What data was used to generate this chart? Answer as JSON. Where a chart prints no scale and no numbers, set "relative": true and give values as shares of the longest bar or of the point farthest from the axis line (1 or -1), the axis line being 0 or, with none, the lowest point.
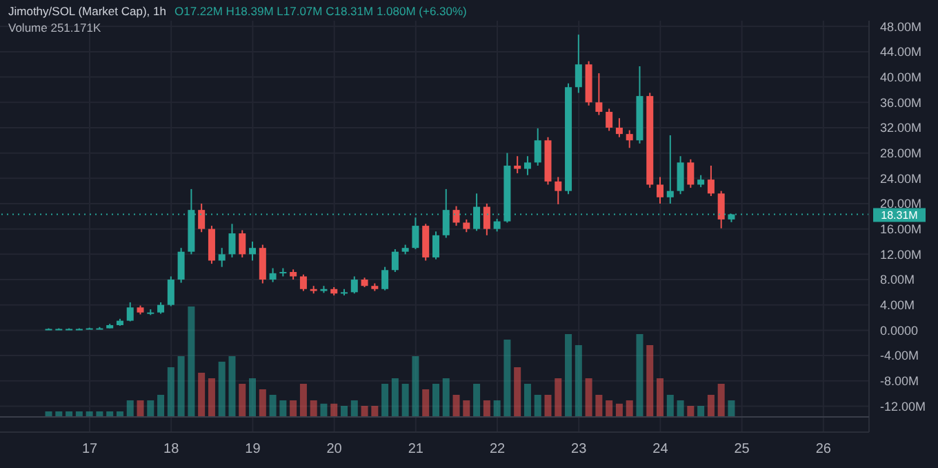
{
  "chart_data": [
    {
      "type": "candlestick",
      "title": "Jimothy/SOL (Market Cap), 1h",
      "annotations": [
        "O17.22M H18.39M L17.07M C18.31M 1.080M (+6.30%)"
      ],
      "x": [
        16.5,
        16.625,
        16.75,
        16.875,
        17,
        17.125,
        17.25,
        17.375,
        17.5,
        17.625,
        17.75,
        17.875,
        18,
        18.125,
        18.25,
        18.375,
        18.5,
        18.625,
        18.75,
        18.875,
        19,
        19.125,
        19.25,
        19.375,
        19.5,
        19.625,
        19.75,
        19.875,
        20,
        20.125,
        20.25,
        20.375,
        20.5,
        20.625,
        20.75,
        20.875,
        21,
        21.125,
        21.25,
        21.375,
        21.5,
        21.625,
        21.75,
        21.875,
        22,
        22.125,
        22.25,
        22.375,
        22.5,
        22.625,
        22.75,
        22.875,
        23,
        23.125,
        23.25,
        23.375,
        23.5,
        23.625,
        23.75,
        23.875,
        24,
        24.125,
        24.25,
        24.375,
        24.5,
        24.625,
        24.75,
        24.875
      ],
      "ohlc": [
        [
          0.2,
          0.3,
          0.1,
          0.2
        ],
        [
          0.2,
          0.3,
          0.1,
          0.2
        ],
        [
          0.2,
          0.3,
          0.1,
          0.2
        ],
        [
          0.2,
          0.3,
          0.1,
          0.2
        ],
        [
          0.2,
          0.4,
          0.2,
          0.3
        ],
        [
          0.3,
          0.5,
          0.2,
          0.3
        ],
        [
          0.3,
          1.0,
          0.3,
          0.8
        ],
        [
          0.8,
          1.8,
          0.7,
          1.5
        ],
        [
          1.5,
          4.4,
          1.4,
          3.6
        ],
        [
          3.6,
          3.9,
          2.5,
          2.8
        ],
        [
          2.8,
          3.3,
          2.4,
          2.8
        ],
        [
          2.8,
          4.4,
          2.6,
          4.0
        ],
        [
          4.0,
          8.5,
          3.8,
          8.0
        ],
        [
          8.0,
          13.0,
          7.5,
          12.4
        ],
        [
          12.4,
          22.3,
          12.0,
          19.0
        ],
        [
          19.0,
          20.0,
          15.5,
          16.0
        ],
        [
          16.0,
          16.5,
          10.5,
          11.0
        ],
        [
          11.0,
          13.0,
          10.0,
          12.0
        ],
        [
          12.0,
          16.8,
          11.5,
          15.3
        ],
        [
          15.3,
          15.8,
          11.5,
          12.0
        ],
        [
          12.0,
          14.0,
          11.0,
          13.0
        ],
        [
          13.0,
          13.5,
          7.4,
          8.0
        ],
        [
          8.0,
          9.8,
          7.6,
          9.0
        ],
        [
          9.0,
          9.8,
          8.5,
          9.2
        ],
        [
          9.2,
          9.6,
          8.0,
          8.5
        ],
        [
          8.5,
          8.8,
          6.2,
          6.5
        ],
        [
          6.5,
          7.0,
          5.8,
          6.2
        ],
        [
          6.2,
          7.0,
          5.9,
          6.5
        ],
        [
          6.5,
          6.8,
          5.5,
          5.8
        ],
        [
          5.8,
          6.5,
          5.5,
          6.0
        ],
        [
          6.0,
          8.5,
          5.8,
          8.0
        ],
        [
          8.0,
          8.3,
          6.8,
          7.0
        ],
        [
          7.0,
          7.4,
          6.2,
          6.5
        ],
        [
          6.5,
          10.0,
          6.3,
          9.5
        ],
        [
          9.5,
          12.8,
          9.2,
          12.4
        ],
        [
          12.4,
          13.5,
          12.0,
          13.0
        ],
        [
          13.0,
          17.8,
          12.8,
          16.5
        ],
        [
          16.5,
          16.8,
          11.0,
          11.5
        ],
        [
          11.5,
          15.6,
          11.2,
          15.0
        ],
        [
          15.0,
          22.3,
          14.6,
          19.0
        ],
        [
          19.0,
          19.6,
          16.5,
          17.0
        ],
        [
          17.0,
          17.5,
          15.5,
          16.0
        ],
        [
          16.0,
          21.6,
          15.7,
          19.5
        ],
        [
          19.5,
          20.0,
          15.0,
          16.0
        ],
        [
          16.0,
          17.6,
          15.6,
          17.2
        ],
        [
          17.2,
          28.0,
          17.0,
          26.0
        ],
        [
          26.0,
          27.5,
          24.8,
          25.5
        ],
        [
          25.5,
          27.5,
          24.5,
          26.5
        ],
        [
          26.5,
          31.9,
          26.0,
          30.0
        ],
        [
          30.0,
          30.5,
          23.0,
          23.5
        ],
        [
          23.5,
          24.2,
          19.9,
          22.0
        ],
        [
          22.0,
          39.0,
          21.5,
          38.4
        ],
        [
          38.4,
          46.7,
          37.5,
          42.0
        ],
        [
          42.0,
          42.5,
          35.5,
          36.0
        ],
        [
          36.0,
          40.6,
          34.0,
          34.5
        ],
        [
          34.5,
          35.0,
          31.5,
          32.0
        ],
        [
          32.0,
          33.5,
          30.5,
          31.0
        ],
        [
          31.0,
          31.6,
          28.8,
          30.0
        ],
        [
          30.0,
          41.7,
          29.5,
          37.0
        ],
        [
          37.0,
          37.5,
          22.5,
          23.0
        ],
        [
          23.0,
          24.2,
          20.0,
          21.0
        ],
        [
          21.0,
          30.8,
          20.0,
          22.0
        ],
        [
          22.0,
          27.5,
          21.5,
          26.5
        ],
        [
          26.5,
          27.0,
          22.5,
          23.0
        ],
        [
          23.0,
          24.5,
          22.6,
          23.8
        ],
        [
          23.8,
          26.0,
          21.2,
          21.6
        ],
        [
          21.6,
          22.0,
          16.1,
          17.5
        ],
        [
          17.5,
          18.39,
          17.07,
          18.31
        ]
      ],
      "colors": [
        "#26a69a",
        "#26a69a",
        "#26a69a",
        "#26a69a",
        "#26a69a",
        "#26a69a",
        "#26a69a",
        "#26a69a",
        "#26a69a",
        "#ef5350",
        "#26a69a",
        "#26a69a",
        "#26a69a",
        "#26a69a",
        "#26a69a",
        "#ef5350",
        "#ef5350",
        "#26a69a",
        "#26a69a",
        "#ef5350",
        "#26a69a",
        "#ef5350",
        "#26a69a",
        "#26a69a",
        "#ef5350",
        "#ef5350",
        "#ef5350",
        "#26a69a",
        "#ef5350",
        "#26a69a",
        "#26a69a",
        "#ef5350",
        "#ef5350",
        "#26a69a",
        "#26a69a",
        "#26a69a",
        "#26a69a",
        "#ef5350",
        "#26a69a",
        "#26a69a",
        "#ef5350",
        "#ef5350",
        "#26a69a",
        "#ef5350",
        "#26a69a",
        "#26a69a",
        "#ef5350",
        "#26a69a",
        "#26a69a",
        "#ef5350",
        "#ef5350",
        "#26a69a",
        "#26a69a",
        "#ef5350",
        "#ef5350",
        "#ef5350",
        "#ef5350",
        "#ef5350",
        "#26a69a",
        "#ef5350",
        "#ef5350",
        "#26a69a",
        "#26a69a",
        "#ef5350",
        "#26a69a",
        "#ef5350",
        "#ef5350",
        "#26a69a"
      ],
      "xlim": [
        15.9,
        26.56
      ],
      "xticks": [
        17,
        18,
        19,
        20,
        21,
        22,
        23,
        24,
        25,
        26
      ],
      "ylim": [
        -16.1,
        48.9
      ],
      "yticks": [
        {
          "value": -12,
          "label": "-12.00M"
        },
        {
          "value": -8,
          "label": "-8.00M"
        },
        {
          "value": -4,
          "label": "-4.00M"
        },
        {
          "value": 0,
          "label": "0.0000"
        },
        {
          "value": 4,
          "label": "4.00M"
        },
        {
          "value": 8,
          "label": "8.00M"
        },
        {
          "value": 12,
          "label": "12.00M"
        },
        {
          "value": 16,
          "label": "16.00M"
        },
        {
          "value": 20,
          "label": "20.00M"
        },
        {
          "value": 24,
          "label": "24.00M"
        },
        {
          "value": 28,
          "label": "28.00M"
        },
        {
          "value": 32,
          "label": "32.00M"
        },
        {
          "value": 36,
          "label": "36.00M"
        },
        {
          "value": 40,
          "label": "40.00M"
        },
        {
          "value": 44,
          "label": "44.00M"
        },
        {
          "value": 48,
          "label": "48.00M"
        }
      ],
      "ref_lines": [
        {
          "axis": "y",
          "value": 18.31,
          "label": "18.31M",
          "color": "#26a69a",
          "line_style": "dotted"
        }
      ],
      "grid": true
    },
    {
      "type": "bar",
      "relative": true,
      "annotations": [
        "Volume 251.171K"
      ],
      "x": [
        16.5,
        16.625,
        16.75,
        16.875,
        17,
        17.125,
        17.25,
        17.375,
        17.5,
        17.625,
        17.75,
        17.875,
        18,
        18.125,
        18.25,
        18.375,
        18.5,
        18.625,
        18.75,
        18.875,
        19,
        19.125,
        19.25,
        19.375,
        19.5,
        19.625,
        19.75,
        19.875,
        20,
        20.125,
        20.25,
        20.375,
        20.5,
        20.625,
        20.75,
        20.875,
        21,
        21.125,
        21.25,
        21.375,
        21.5,
        21.625,
        21.75,
        21.875,
        22,
        22.125,
        22.25,
        22.375,
        22.5,
        22.625,
        22.75,
        22.875,
        23,
        23.125,
        23.25,
        23.375,
        23.5,
        23.625,
        23.75,
        23.875,
        24,
        24.125,
        24.25,
        24.375,
        24.5,
        24.625,
        24.75,
        24.875
      ],
      "values": [
        0.05,
        0.05,
        0.05,
        0.05,
        0.05,
        0.05,
        0.05,
        0.05,
        0.15,
        0.15,
        0.15,
        0.2,
        0.45,
        0.55,
        1.0,
        0.4,
        0.35,
        0.5,
        0.55,
        0.3,
        0.35,
        0.25,
        0.2,
        0.15,
        0.15,
        0.3,
        0.15,
        0.12,
        0.12,
        0.1,
        0.15,
        0.1,
        0.1,
        0.3,
        0.35,
        0.3,
        0.55,
        0.25,
        0.3,
        0.35,
        0.2,
        0.15,
        0.3,
        0.15,
        0.15,
        0.7,
        0.45,
        0.3,
        0.2,
        0.2,
        0.35,
        0.75,
        0.65,
        0.35,
        0.2,
        0.15,
        0.12,
        0.15,
        0.75,
        0.65,
        0.35,
        0.2,
        0.15,
        0.1,
        0.1,
        0.2,
        0.3,
        0.15
      ],
      "colors": [
        "#26a69a",
        "#26a69a",
        "#26a69a",
        "#26a69a",
        "#26a69a",
        "#26a69a",
        "#26a69a",
        "#26a69a",
        "#26a69a",
        "#ef5350",
        "#26a69a",
        "#26a69a",
        "#26a69a",
        "#26a69a",
        "#26a69a",
        "#ef5350",
        "#ef5350",
        "#26a69a",
        "#26a69a",
        "#ef5350",
        "#26a69a",
        "#ef5350",
        "#26a69a",
        "#26a69a",
        "#ef5350",
        "#ef5350",
        "#ef5350",
        "#26a69a",
        "#ef5350",
        "#26a69a",
        "#26a69a",
        "#ef5350",
        "#ef5350",
        "#26a69a",
        "#26a69a",
        "#26a69a",
        "#26a69a",
        "#ef5350",
        "#26a69a",
        "#26a69a",
        "#ef5350",
        "#ef5350",
        "#26a69a",
        "#ef5350",
        "#26a69a",
        "#26a69a",
        "#ef5350",
        "#26a69a",
        "#26a69a",
        "#ef5350",
        "#ef5350",
        "#26a69a",
        "#26a69a",
        "#ef5350",
        "#ef5350",
        "#ef5350",
        "#ef5350",
        "#ef5350",
        "#26a69a",
        "#ef5350",
        "#ef5350",
        "#26a69a",
        "#26a69a",
        "#ef5350",
        "#26a69a",
        "#ef5350",
        "#ef5350",
        "#26a69a"
      ],
      "xlim": [
        15.9,
        26.56
      ]
    }
  ]
}
